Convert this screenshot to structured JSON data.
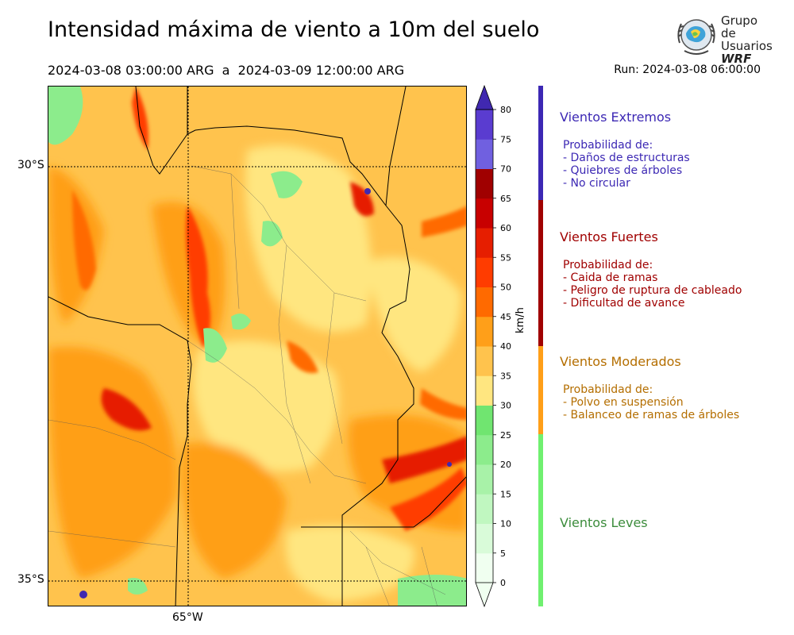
{
  "header": {
    "title": "Intensidad máxima de viento a 10m del suelo",
    "period": "2024-03-08 03:00:00 ARG  a  2024-03-09 12:00:00 ARG",
    "run": "Run: 2024-03-08 06:00:00"
  },
  "logo": {
    "line1": "Grupo de",
    "line2": "Usuarios",
    "line3": "WRF",
    "icon": "globe-wreath-icon"
  },
  "map": {
    "lat_labels": [
      "30°S",
      "35°S"
    ],
    "lon_labels": [
      "65°W"
    ]
  },
  "colorbar": {
    "unit": "km/h",
    "ticks": [
      "0",
      "5",
      "10",
      "15",
      "20",
      "25",
      "30",
      "35",
      "40",
      "45",
      "50",
      "55",
      "60",
      "65",
      "70",
      "75",
      "80"
    ],
    "colors": [
      "#f0fff0",
      "#d9fbd9",
      "#c0f7c0",
      "#a8f2a8",
      "#8cec8c",
      "#70e570",
      "#ffe680",
      "#ffc34d",
      "#ff9f19",
      "#ff6a00",
      "#ff3c00",
      "#e61e00",
      "#c80000",
      "#a00000",
      "#7060e0",
      "#5a3cd0",
      "#4028b0"
    ]
  },
  "categories": [
    {
      "title": "Vientos Extremos",
      "color": "#3c28b4",
      "lines": [
        "Probabilidad de:",
        "- Daños de estructuras",
        "- Quiebres de árboles",
        "- No circular"
      ]
    },
    {
      "title": "Vientos Fuertes",
      "color": "#a00000",
      "lines": [
        "Probabilidad de:",
        "- Caida de ramas",
        "- Peligro de ruptura de cableado",
        "- Dificultad de avance"
      ]
    },
    {
      "title": "Vientos Moderados",
      "color": "#b46e00",
      "bar_color": "#ff9f19",
      "lines": [
        "Probabilidad de:",
        "- Polvo en suspensión",
        "- Balanceo de ramas de árboles"
      ]
    },
    {
      "title": "Vientos Leves",
      "color": "#3c8c3c",
      "bar_color": "#70f070",
      "lines": []
    }
  ]
}
